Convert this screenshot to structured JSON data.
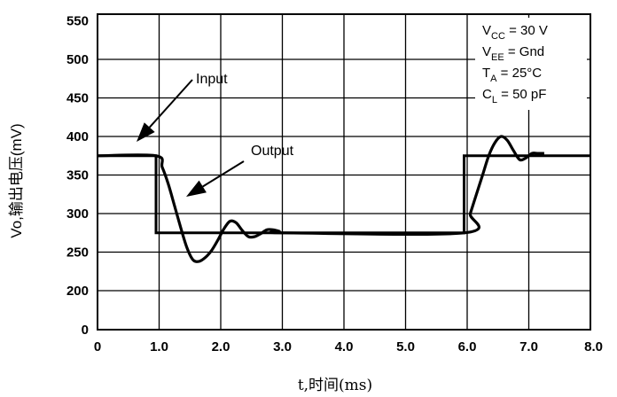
{
  "chart_data": {
    "type": "line",
    "title": "",
    "xlabel": "t,时间(ms)",
    "ylabel": "Vo,输出电压(mV)",
    "xlim": [
      0,
      8.0
    ],
    "ylim": [
      0,
      550
    ],
    "x_ticks": [
      "0",
      "1.0",
      "2.0",
      "3.0",
      "4.0",
      "5.0",
      "6.0",
      "7.0",
      "8.0"
    ],
    "y_ticks": [
      "0",
      "200",
      "250",
      "300",
      "350",
      "400",
      "450",
      "500",
      "550"
    ],
    "grid": true,
    "series": [
      {
        "name": "Input",
        "x": [
          -0.1,
          0.95,
          0.95,
          5.95,
          5.95,
          8.0
        ],
        "y": [
          375,
          375,
          275,
          275,
          375,
          375
        ]
      },
      {
        "name": "Output",
        "x": [
          -0.1,
          0.95,
          1.05,
          1.15,
          1.25,
          1.35,
          1.45,
          1.55,
          1.65,
          1.75,
          1.85,
          1.95,
          2.05,
          2.15,
          2.25,
          2.35,
          2.45,
          2.55,
          2.65,
          2.75,
          2.85,
          2.95,
          3.05,
          5.95,
          6.05,
          6.15,
          6.25,
          6.35,
          6.45,
          6.55,
          6.65,
          6.75,
          6.85,
          6.95,
          7.05,
          7.15,
          7.25
        ],
        "y": [
          375,
          375,
          360,
          338,
          310,
          282,
          256,
          240,
          238,
          243,
          252,
          265,
          280,
          290,
          288,
          278,
          270,
          270,
          274,
          279,
          279,
          277,
          275,
          275,
          300,
          325,
          350,
          375,
          392,
          400,
          395,
          382,
          370,
          372,
          378,
          378,
          378
        ]
      }
    ],
    "annotations": [
      {
        "text": "Input",
        "x": 1.5,
        "y": 455
      },
      {
        "text": "Output",
        "x": 2.4,
        "y": 378
      }
    ],
    "conditions": [
      {
        "main": "V",
        "sub": "CC",
        "rest": " = 30 V"
      },
      {
        "main": "V",
        "sub": "EE",
        "rest": " = Gnd"
      },
      {
        "main": "T",
        "sub": "A",
        "rest": " = 25°C"
      },
      {
        "main": "C",
        "sub": "L",
        "rest": " = 50 pF"
      }
    ]
  }
}
